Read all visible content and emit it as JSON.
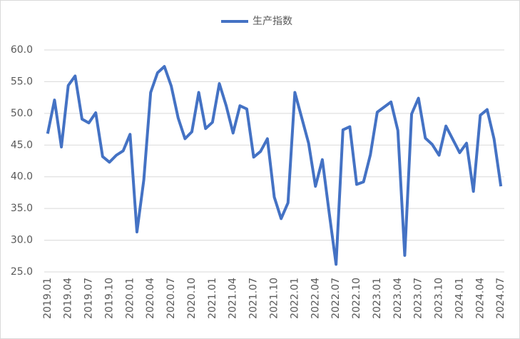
{
  "chart_data": {
    "type": "line",
    "categories": [
      "2019.01",
      null,
      null,
      "2019.04",
      null,
      null,
      "2019.07",
      null,
      null,
      "2019.10",
      null,
      null,
      "2020.01",
      null,
      null,
      "2020.04",
      null,
      null,
      "2020.07",
      null,
      null,
      "2020.10",
      null,
      null,
      "2021.01",
      null,
      null,
      "2021.04",
      null,
      null,
      "2021.07",
      null,
      null,
      "2021.10",
      null,
      null,
      "2022.01",
      null,
      null,
      "2022.04",
      null,
      null,
      "2022.07",
      null,
      null,
      "2022.10",
      null,
      null,
      "2023.01",
      null,
      null,
      "2023.04",
      null,
      null,
      "2023.07",
      null,
      null,
      "2023.10",
      null,
      null,
      "2024.01",
      null,
      null,
      "2024.04",
      null,
      null,
      "2024.07"
    ],
    "series": [
      {
        "name": "生产指数",
        "color": "#4472c4",
        "values": [
          46.8,
          52.1,
          44.7,
          54.4,
          55.9,
          49.1,
          48.5,
          50.1,
          43.2,
          42.3,
          43.4,
          44.1,
          46.7,
          31.3,
          39.5,
          53.3,
          56.4,
          57.4,
          54.3,
          49.3,
          46.0,
          47.1,
          53.3,
          47.6,
          48.6,
          54.7,
          51.2,
          46.9,
          51.2,
          50.7,
          43.1,
          44.0,
          46.0,
          36.8,
          33.4,
          35.9,
          53.3,
          49.3,
          45.3,
          38.5,
          42.7,
          34.3,
          26.2,
          47.4,
          47.9,
          38.8,
          39.2,
          43.5,
          50.2,
          51.0,
          51.8,
          47.3,
          27.6,
          49.9,
          52.4,
          46.1,
          45.1,
          43.4,
          48.0,
          45.9,
          43.8,
          45.3,
          37.7,
          49.7,
          50.6,
          46.0,
          38.5
        ]
      }
    ],
    "ylim": [
      25,
      60
    ],
    "yticks": [
      {
        "value": 25,
        "label": "25.0"
      },
      {
        "value": 30,
        "label": "30.0"
      },
      {
        "value": 35,
        "label": "35.0"
      },
      {
        "value": 40,
        "label": "40.0"
      },
      {
        "value": 45,
        "label": "45.0"
      },
      {
        "value": 50,
        "label": "50.0"
      },
      {
        "value": 55,
        "label": "55.0"
      },
      {
        "value": 60,
        "label": "60.0"
      }
    ],
    "grid": true,
    "legend": "top"
  }
}
